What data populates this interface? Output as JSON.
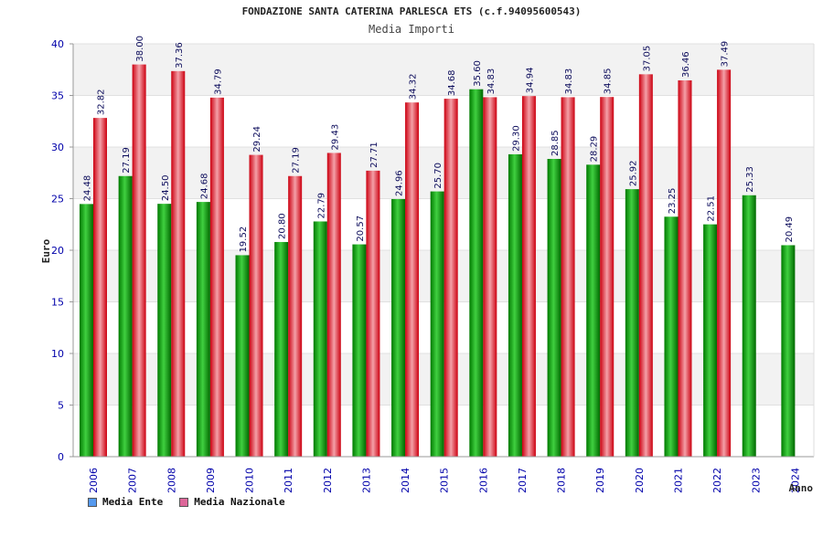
{
  "chart_data": {
    "type": "bar",
    "title": "FONDAZIONE SANTA CATERINA PARLESCA ETS (c.f.94095600543)",
    "subtitle": "Media Importi",
    "xlabel": "Anno",
    "ylabel": "Euro",
    "ylim": [
      0,
      40
    ],
    "yticks": [
      0,
      5,
      10,
      15,
      20,
      25,
      30,
      35,
      40
    ],
    "categories": [
      "2006",
      "2007",
      "2008",
      "2009",
      "2010",
      "2011",
      "2012",
      "2013",
      "2014",
      "2015",
      "2016",
      "2017",
      "2018",
      "2019",
      "2020",
      "2021",
      "2022",
      "2023",
      "2024"
    ],
    "series": [
      {
        "name": "Media Ente",
        "color": "#00a000",
        "legend_color": "#5599ee",
        "values": [
          24.48,
          27.19,
          24.5,
          24.68,
          19.52,
          20.8,
          22.79,
          20.57,
          24.96,
          25.7,
          35.6,
          29.3,
          28.85,
          28.29,
          25.92,
          23.25,
          22.51,
          25.33,
          20.49
        ],
        "labels": [
          "24.48",
          "27.19",
          "24.50",
          "24.68",
          "19.52",
          "20.80",
          "22.79",
          "20.57",
          "24.96",
          "25.70",
          "35.60",
          "29.30",
          "28.85",
          "28.29",
          "25.92",
          "23.25",
          "22.51",
          "25.33",
          "20.49"
        ]
      },
      {
        "name": "Media Nazionale",
        "color": "#e01020",
        "legend_color": "#dd6699",
        "values": [
          32.82,
          38.0,
          37.36,
          34.79,
          29.24,
          27.19,
          29.43,
          27.71,
          34.32,
          34.68,
          34.83,
          34.94,
          34.83,
          34.85,
          37.05,
          36.46,
          37.49,
          null,
          null
        ],
        "labels": [
          "32.82",
          "38.00",
          "37.36",
          "34.79",
          "29.24",
          "27.19",
          "29.43",
          "27.71",
          "34.32",
          "34.68",
          "34.83",
          "34.94",
          "34.83",
          "34.85",
          "37.05",
          "36.46",
          "37.49",
          null,
          null
        ]
      }
    ],
    "grid": true,
    "legend_position": "bottom-left"
  }
}
